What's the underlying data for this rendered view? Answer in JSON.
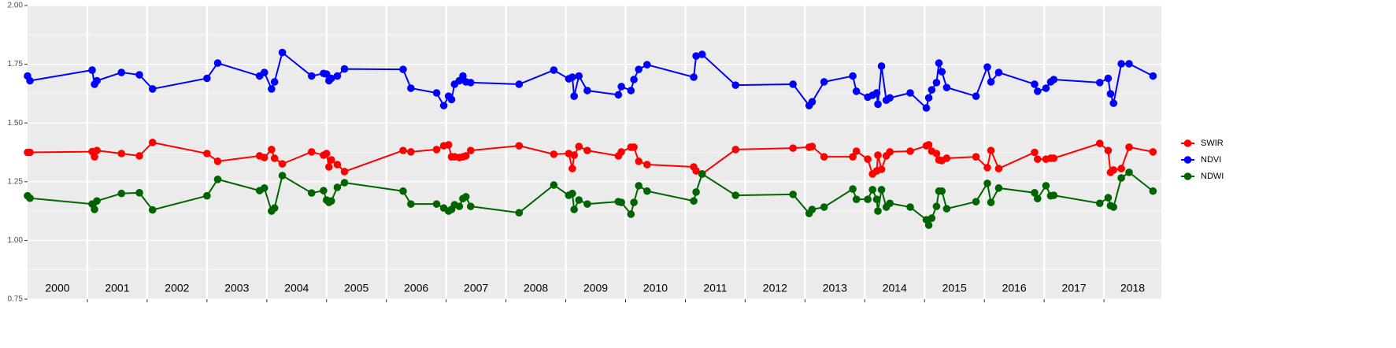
{
  "chart_data": {
    "type": "line",
    "x": [
      2000.0,
      2000.04,
      2001.08,
      2001.12,
      2001.16,
      2001.57,
      2001.87,
      2002.09,
      2003.0,
      2003.18,
      2003.88,
      2003.96,
      2004.08,
      2004.13,
      2004.26,
      2004.75,
      2004.95,
      2005.0,
      2005.04,
      2005.08,
      2005.18,
      2005.3,
      2006.28,
      2006.41,
      2006.84,
      2006.96,
      2007.04,
      2007.09,
      2007.14,
      2007.22,
      2007.28,
      2007.33,
      2007.41,
      2008.22,
      2008.8,
      2009.05,
      2009.11,
      2009.14,
      2009.22,
      2009.36,
      2009.88,
      2009.93,
      2010.09,
      2010.14,
      2010.22,
      2010.36,
      2011.14,
      2011.18,
      2011.28,
      2011.84,
      2012.8,
      2013.07,
      2013.12,
      2013.32,
      2013.8,
      2013.86,
      2014.05,
      2014.13,
      2014.2,
      2014.22,
      2014.28,
      2014.36,
      2014.42,
      2014.76,
      2015.03,
      2015.07,
      2015.12,
      2015.2,
      2015.24,
      2015.29,
      2015.37,
      2015.86,
      2016.05,
      2016.11,
      2016.24,
      2016.84,
      2016.89,
      2017.03,
      2017.11,
      2017.16,
      2017.93,
      2018.07,
      2018.11,
      2018.16,
      2018.29,
      2018.42,
      2018.82
    ],
    "series": [
      {
        "name": "SWIR",
        "color": "#ff0000",
        "values": [
          1.375,
          1.375,
          1.378,
          1.356,
          1.383,
          1.37,
          1.36,
          1.417,
          1.37,
          1.337,
          1.36,
          1.353,
          1.387,
          1.35,
          1.326,
          1.377,
          1.363,
          1.37,
          1.313,
          1.343,
          1.323,
          1.293,
          1.383,
          1.377,
          1.387,
          1.403,
          1.407,
          1.356,
          1.356,
          1.353,
          1.356,
          1.36,
          1.383,
          1.403,
          1.367,
          1.37,
          1.306,
          1.363,
          1.4,
          1.383,
          1.36,
          1.377,
          1.397,
          1.397,
          1.337,
          1.323,
          1.313,
          1.296,
          1.283,
          1.387,
          1.393,
          1.397,
          1.4,
          1.356,
          1.356,
          1.38,
          1.346,
          1.283,
          1.296,
          1.363,
          1.303,
          1.36,
          1.377,
          1.38,
          1.403,
          1.407,
          1.38,
          1.37,
          1.343,
          1.34,
          1.35,
          1.356,
          1.31,
          1.383,
          1.306,
          1.375,
          1.346,
          1.346,
          1.35,
          1.35,
          1.413,
          1.383,
          1.29,
          1.3,
          1.306,
          1.397,
          1.377
        ]
      },
      {
        "name": "NDVI",
        "color": "#0000ff",
        "values": [
          1.7,
          1.68,
          1.725,
          1.665,
          1.68,
          1.715,
          1.705,
          1.645,
          1.69,
          1.755,
          1.7,
          1.715,
          1.645,
          1.675,
          1.8,
          1.7,
          1.711,
          1.708,
          1.68,
          1.69,
          1.7,
          1.73,
          1.728,
          1.648,
          1.628,
          1.574,
          1.614,
          1.6,
          1.665,
          1.68,
          1.7,
          1.675,
          1.672,
          1.665,
          1.725,
          1.688,
          1.695,
          1.614,
          1.7,
          1.638,
          1.62,
          1.655,
          1.638,
          1.685,
          1.728,
          1.748,
          1.695,
          1.785,
          1.792,
          1.661,
          1.665,
          1.574,
          1.59,
          1.675,
          1.7,
          1.635,
          1.61,
          1.618,
          1.628,
          1.58,
          1.742,
          1.597,
          1.607,
          1.628,
          1.564,
          1.607,
          1.641,
          1.672,
          1.755,
          1.718,
          1.651,
          1.614,
          1.738,
          1.675,
          1.715,
          1.665,
          1.635,
          1.648,
          1.675,
          1.685,
          1.672,
          1.69,
          1.624,
          1.584,
          1.752,
          1.752,
          1.7
        ]
      },
      {
        "name": "NDWI",
        "color": "#006400",
        "values": [
          1.19,
          1.18,
          1.155,
          1.132,
          1.168,
          1.2,
          1.203,
          1.13,
          1.19,
          1.26,
          1.212,
          1.223,
          1.125,
          1.138,
          1.276,
          1.202,
          1.212,
          1.172,
          1.162,
          1.168,
          1.226,
          1.246,
          1.21,
          1.155,
          1.155,
          1.138,
          1.125,
          1.132,
          1.152,
          1.145,
          1.178,
          1.186,
          1.145,
          1.118,
          1.236,
          1.192,
          1.2,
          1.132,
          1.172,
          1.155,
          1.165,
          1.162,
          1.112,
          1.162,
          1.233,
          1.21,
          1.168,
          1.206,
          1.283,
          1.192,
          1.196,
          1.115,
          1.132,
          1.142,
          1.219,
          1.175,
          1.175,
          1.216,
          1.175,
          1.125,
          1.216,
          1.142,
          1.158,
          1.142,
          1.088,
          1.065,
          1.095,
          1.145,
          1.21,
          1.21,
          1.135,
          1.165,
          1.243,
          1.162,
          1.223,
          1.203,
          1.178,
          1.233,
          1.19,
          1.192,
          1.158,
          1.182,
          1.148,
          1.142,
          1.266,
          1.29,
          1.21
        ]
      }
    ],
    "xlim": [
      2000,
      2018.96
    ],
    "ylim": [
      0.75,
      2.0
    ],
    "yticks": [
      0.75,
      {
        "value": 1,
        "label": "1.00"
      },
      1.25,
      {
        "value": 1.5,
        "label": "1.50"
      },
      1.75,
      {
        "value": 2,
        "label": "2.00"
      }
    ],
    "year_bands": [
      {
        "value": 2000,
        "label": "2000"
      },
      {
        "value": 2001,
        "label": "2001"
      },
      {
        "value": 2002,
        "label": "2002"
      },
      {
        "value": 2003,
        "label": "2003"
      },
      {
        "value": 2004,
        "label": "2004"
      },
      {
        "value": 2005,
        "label": "2005"
      },
      {
        "value": 2006,
        "label": "2006"
      },
      {
        "value": 2007,
        "label": "2007"
      },
      {
        "value": 2008,
        "label": "2008"
      },
      {
        "value": 2009,
        "label": "2009"
      },
      {
        "value": 2010,
        "label": "2010"
      },
      {
        "value": 2011,
        "label": "2011"
      },
      {
        "value": 2012,
        "label": "2012"
      },
      {
        "value": 2013,
        "label": "2013"
      },
      {
        "value": 2014,
        "label": "2014"
      },
      {
        "value": 2015,
        "label": "2015"
      },
      {
        "value": 2016,
        "label": "2016"
      },
      {
        "value": 2017,
        "label": "2017"
      },
      {
        "value": 2018,
        "label": "2018"
      }
    ],
    "grid": true,
    "legend": "right"
  }
}
